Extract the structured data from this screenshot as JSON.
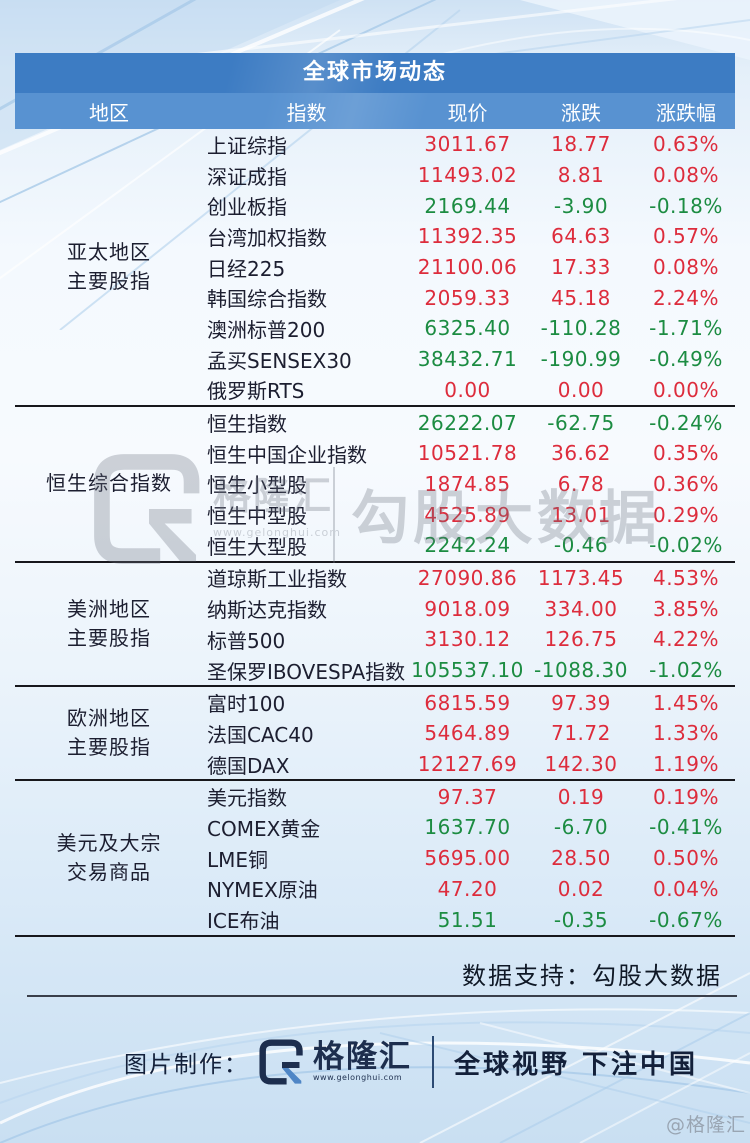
{
  "chart_data": {
    "type": "table",
    "title": "全球市场动态",
    "columns": [
      "地区",
      "指数",
      "现价",
      "涨跌",
      "涨跌幅"
    ],
    "sections": [
      {
        "region_lines": [
          "亚太地区",
          "主要股指"
        ],
        "rows": [
          {
            "name": "上证综指",
            "price": "3011.67",
            "change": "18.77",
            "pct": "0.63%"
          },
          {
            "name": "深证成指",
            "price": "11493.02",
            "change": "8.81",
            "pct": "0.08%"
          },
          {
            "name": "创业板指",
            "price": "2169.44",
            "change": "-3.90",
            "pct": "-0.18%"
          },
          {
            "name": "台湾加权指数",
            "price": "11392.35",
            "change": "64.63",
            "pct": "0.57%"
          },
          {
            "name": "日经225",
            "price": "21100.06",
            "change": "17.33",
            "pct": "0.08%"
          },
          {
            "name": "韩国综合指数",
            "price": "2059.33",
            "change": "45.18",
            "pct": "2.24%"
          },
          {
            "name": "澳洲标普200",
            "price": "6325.40",
            "change": "-110.28",
            "pct": "-1.71%"
          },
          {
            "name": "孟买SENSEX30",
            "price": "38432.71",
            "change": "-190.99",
            "pct": "-0.49%"
          },
          {
            "name": "俄罗斯RTS",
            "price": "0.00",
            "change": "0.00",
            "pct": "0.00%"
          }
        ]
      },
      {
        "region_lines": [
          "恒生综合指数"
        ],
        "rows": [
          {
            "name": "恒生指数",
            "price": "26222.07",
            "change": "-62.75",
            "pct": "-0.24%"
          },
          {
            "name": "恒生中国企业指数",
            "price": "10521.78",
            "change": "36.62",
            "pct": "0.35%"
          },
          {
            "name": "恒生小型股",
            "price": "1874.85",
            "change": "6.78",
            "pct": "0.36%"
          },
          {
            "name": "恒生中型股",
            "price": "4525.89",
            "change": "13.01",
            "pct": "0.29%"
          },
          {
            "name": "恒生大型股",
            "price": "2242.24",
            "change": "-0.46",
            "pct": "-0.02%"
          }
        ]
      },
      {
        "region_lines": [
          "美洲地区",
          "主要股指"
        ],
        "rows": [
          {
            "name": "道琼斯工业指数",
            "price": "27090.86",
            "change": "1173.45",
            "pct": "4.53%"
          },
          {
            "name": "纳斯达克指数",
            "price": "9018.09",
            "change": "334.00",
            "pct": "3.85%"
          },
          {
            "name": "标普500",
            "price": "3130.12",
            "change": "126.75",
            "pct": "4.22%"
          },
          {
            "name": "圣保罗IBOVESPA指数",
            "price": "105537.10",
            "change": "-1088.30",
            "pct": "-1.02%"
          }
        ]
      },
      {
        "region_lines": [
          "欧洲地区",
          "主要股指"
        ],
        "rows": [
          {
            "name": "富时100",
            "price": "6815.59",
            "change": "97.39",
            "pct": "1.45%"
          },
          {
            "name": "法国CAC40",
            "price": "5464.89",
            "change": "71.72",
            "pct": "1.33%"
          },
          {
            "name": "德国DAX",
            "price": "12127.69",
            "change": "142.30",
            "pct": "1.19%"
          }
        ]
      },
      {
        "region_lines": [
          "美元及大宗",
          "交易商品"
        ],
        "rows": [
          {
            "name": "美元指数",
            "price": "97.37",
            "change": "0.19",
            "pct": "0.19%"
          },
          {
            "name": "COMEX黄金",
            "price": "1637.70",
            "change": "-6.70",
            "pct": "-0.41%"
          },
          {
            "name": "LME铜",
            "price": "5695.00",
            "change": "28.50",
            "pct": "0.50%"
          },
          {
            "name": "NYMEX原油",
            "price": "47.20",
            "change": "0.02",
            "pct": "0.04%"
          },
          {
            "name": "ICE布油",
            "price": "51.51",
            "change": "-0.35",
            "pct": "-0.67%"
          }
        ]
      }
    ]
  },
  "watermark": {
    "brand": "格隆汇",
    "url": "www.gelonghui.com",
    "big_text": "勾股大数据"
  },
  "support": {
    "text": "数据支持：勾股大数据"
  },
  "footer": {
    "credit_label": "图片制作：",
    "brand": "格隆汇",
    "brand_url": "www.gelonghui.com",
    "slogan": "全球视野 下注中国",
    "corner_mark": "@格隆汇"
  },
  "colors": {
    "up": "#dd2c3c",
    "down": "#1c8c42",
    "title_bar": "#3d7cc3",
    "header_bar": "#5892d1",
    "text_dark": "#1c1e30",
    "navy": "#1d2e4e",
    "logo_blue": "#4f86c6"
  }
}
